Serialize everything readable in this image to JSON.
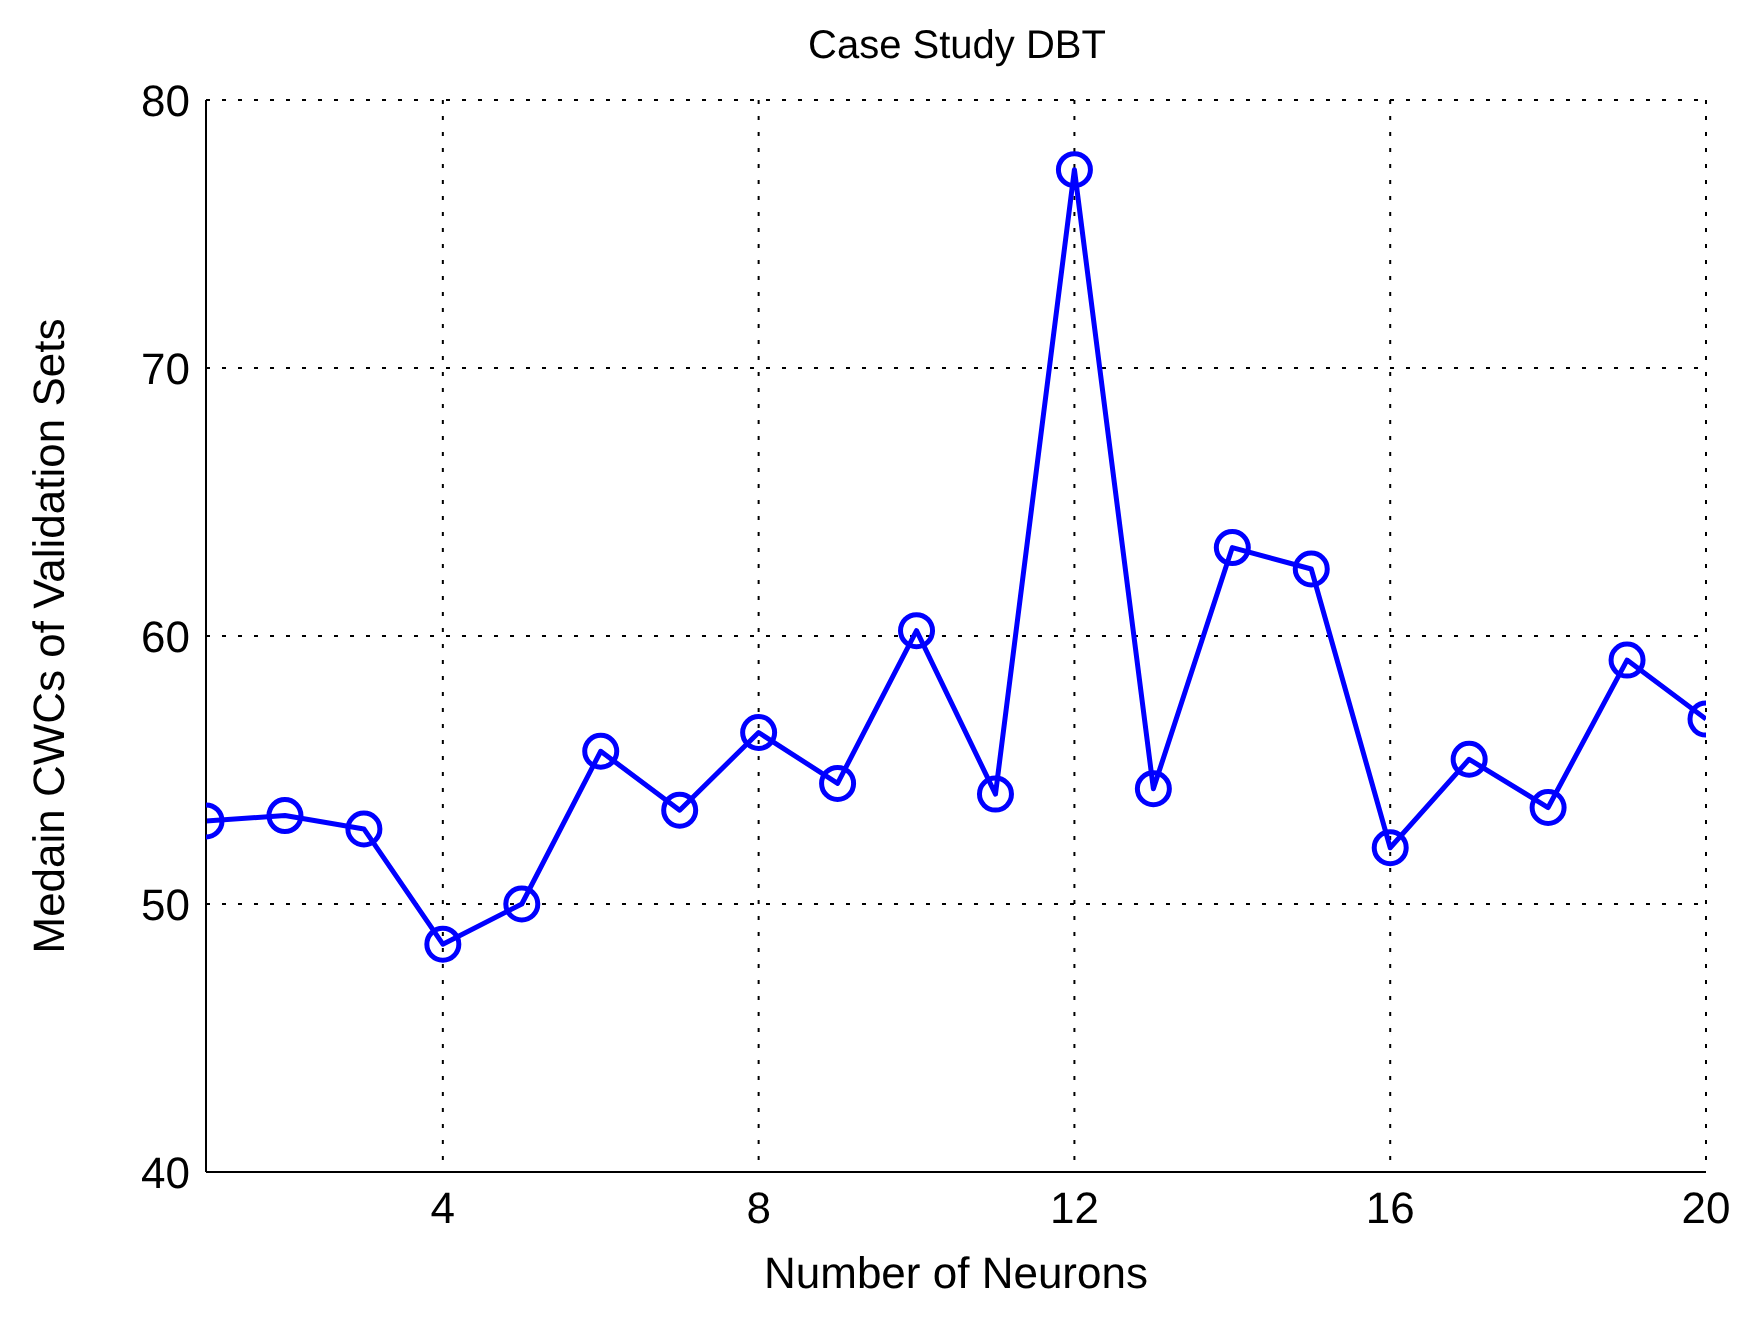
{
  "chart_data": {
    "type": "line",
    "title": "Case Study DBT",
    "xlabel": "Number of Neurons",
    "ylabel": "Medain CWCs of Validation Sets",
    "x": [
      1,
      2,
      3,
      4,
      5,
      6,
      7,
      8,
      9,
      10,
      11,
      12,
      13,
      14,
      15,
      16,
      17,
      18,
      19,
      20
    ],
    "series": [
      {
        "color": "#0000ff",
        "values": [
          53.1,
          53.3,
          52.8,
          48.5,
          50.0,
          55.7,
          53.5,
          56.4,
          54.5,
          60.2,
          54.1,
          77.4,
          54.3,
          63.3,
          62.5,
          52.1,
          55.4,
          53.6,
          59.1,
          56.9
        ]
      }
    ],
    "xlim": [
      1,
      20
    ],
    "xticks": [
      4,
      8,
      12,
      16,
      20
    ],
    "ylim": [
      40,
      80
    ],
    "yticks": [
      40,
      50,
      60,
      70,
      80
    ],
    "grid": true,
    "marker": "circle",
    "line_style": "solid"
  }
}
